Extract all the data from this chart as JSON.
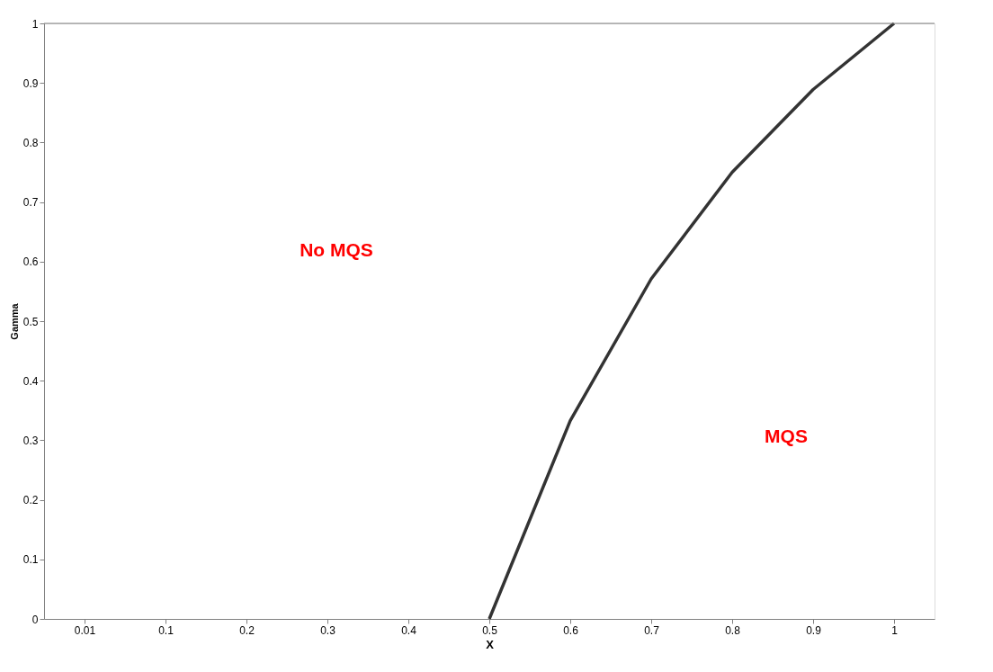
{
  "chart_data": {
    "type": "line",
    "xlabel": "X",
    "ylabel": "Gamma",
    "categories": [
      "0.01",
      "0.1",
      "0.2",
      "0.3",
      "0.4",
      "0.5",
      "0.6",
      "0.7",
      "0.8",
      "0.9",
      "1"
    ],
    "series": [
      {
        "color": "#333333",
        "values": [
          null,
          null,
          null,
          null,
          null,
          0,
          0.333,
          0.571,
          0.75,
          0.889,
          1
        ]
      }
    ],
    "ylim": [
      0,
      1
    ],
    "yticks": [
      0,
      0.1,
      0.2,
      0.3,
      0.4,
      0.5,
      0.6,
      0.7,
      0.8,
      0.9,
      1
    ],
    "grid": false,
    "marker": "none",
    "line_style": "solid",
    "annotations": [
      "No MQS",
      "MQS"
    ]
  }
}
